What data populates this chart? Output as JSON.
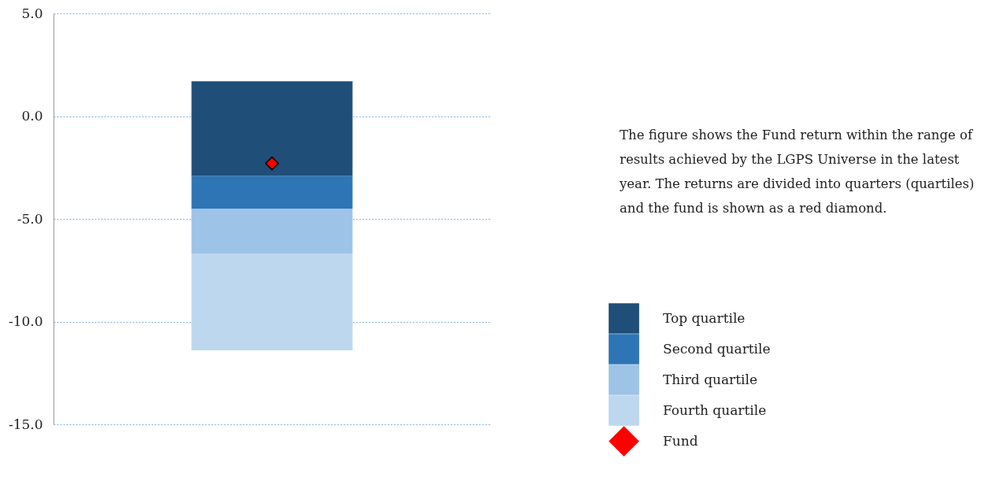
{
  "chart_data": {
    "type": "bar",
    "categories": [
      null
    ],
    "series": [
      {
        "name": "Fourth quartile",
        "color": "#bdd7ee",
        "base": [
          -11.4
        ],
        "values": [
          4.7
        ]
      },
      {
        "name": "Third quartile",
        "color": "#9dc3e6",
        "base": [
          -6.7
        ],
        "values": [
          2.2
        ]
      },
      {
        "name": "Second quartile",
        "color": "#2e75b6",
        "base": [
          -4.5
        ],
        "values": [
          1.6
        ]
      },
      {
        "name": "Top quartile",
        "color": "#1f4e79",
        "base": [
          -2.9
        ],
        "values": [
          4.6
        ]
      },
      {
        "name": "Fund",
        "type": "scatter",
        "marker": "diamond",
        "color": "#ff0000",
        "values": [
          -2.3
        ]
      }
    ],
    "ylim": [
      -15,
      5
    ],
    "yticks": [
      {
        "value": -15,
        "label": "-15.0"
      },
      {
        "value": -10,
        "label": "-10.0"
      },
      {
        "value": -5,
        "label": "-5.0"
      },
      {
        "value": 0,
        "label": "0.0"
      },
      {
        "value": 5,
        "label": "5.0"
      }
    ],
    "grid": "y",
    "legend": "right",
    "tick_labels": "y",
    "annotations": [
      "The figure shows the Fund return within the range of results achieved by the LGPS Universe in the latest year. The returns are divided into quarters (quartiles) and the fund is shown as a red diamond."
    ]
  }
}
